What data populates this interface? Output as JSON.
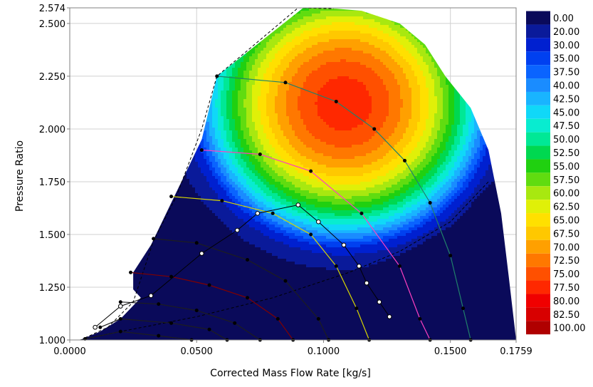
{
  "chart_data": {
    "type": "heatmap",
    "title": "",
    "xlabel": "Corrected Mass Flow Rate [kg/s]",
    "ylabel": "Pressure Ratio",
    "xlim": [
      0.0,
      0.1759
    ],
    "ylim": [
      1.0,
      2.574
    ],
    "x_ticks": [
      {
        "value": 0.0,
        "label": "0.0000"
      },
      {
        "value": 0.05,
        "label": "0.0500"
      },
      {
        "value": 0.1,
        "label": "0.1000"
      },
      {
        "value": 0.15,
        "label": "0.1500"
      },
      {
        "value": 0.1759,
        "label": "0.1759"
      }
    ],
    "y_ticks": [
      {
        "value": 1.0,
        "label": "1.000"
      },
      {
        "value": 1.25,
        "label": "1.250"
      },
      {
        "value": 1.5,
        "label": "1.500"
      },
      {
        "value": 1.75,
        "label": "1.750"
      },
      {
        "value": 2.0,
        "label": "2.000"
      },
      {
        "value": 2.25,
        "label": "2.250"
      },
      {
        "value": 2.5,
        "label": "2.500"
      },
      {
        "value": 2.574,
        "label": "2.574"
      }
    ],
    "grid": true,
    "legend_position": "right",
    "colorbar": {
      "labels": [
        "0.00",
        "20.00",
        "30.00",
        "35.00",
        "37.50",
        "40.00",
        "42.50",
        "45.00",
        "47.50",
        "50.00",
        "52.50",
        "55.00",
        "57.50",
        "60.00",
        "62.50",
        "65.00",
        "67.50",
        "70.00",
        "72.50",
        "75.00",
        "77.50",
        "80.00",
        "82.50",
        "100.00"
      ],
      "colors": [
        "#0a0a5a",
        "#0a1a9a",
        "#0020d0",
        "#0040f0",
        "#0a64ff",
        "#1a8cff",
        "#19b4ff",
        "#10d8f8",
        "#08ecd0",
        "#00e896",
        "#00d850",
        "#20d010",
        "#60dc10",
        "#a8e810",
        "#e0f008",
        "#ffe000",
        "#ffc800",
        "#ffa000",
        "#ff7800",
        "#ff5000",
        "#ff2800",
        "#f00000",
        "#d80000",
        "#b00000"
      ]
    },
    "efficiency_peak": {
      "x": 0.108,
      "y": 2.12,
      "value": 79
    },
    "efficiency_sigma": {
      "x": 0.042,
      "y": 0.48
    },
    "boundary": [
      [
        0.004,
        1.0
      ],
      [
        0.012,
        1.04
      ],
      [
        0.02,
        1.1
      ],
      [
        0.028,
        1.2
      ],
      [
        0.025,
        1.24
      ],
      [
        0.025,
        1.32
      ],
      [
        0.032,
        1.45
      ],
      [
        0.04,
        1.65
      ],
      [
        0.052,
        1.95
      ],
      [
        0.058,
        2.25
      ],
      [
        0.092,
        2.574
      ],
      [
        0.105,
        2.57
      ],
      [
        0.115,
        2.56
      ],
      [
        0.13,
        2.5
      ],
      [
        0.14,
        2.4
      ],
      [
        0.148,
        2.25
      ],
      [
        0.158,
        2.1
      ],
      [
        0.165,
        1.9
      ],
      [
        0.17,
        1.6
      ],
      [
        0.173,
        1.3
      ],
      [
        0.1759,
        1.0
      ]
    ],
    "surge_line": [
      [
        0.006,
        1.01
      ],
      [
        0.015,
        1.06
      ],
      [
        0.025,
        1.18
      ],
      [
        0.033,
        1.47
      ],
      [
        0.042,
        1.68
      ],
      [
        0.052,
        2.0
      ],
      [
        0.058,
        2.25
      ],
      [
        0.09,
        2.574
      ],
      [
        0.104,
        2.57
      ]
    ],
    "choke_line": [
      [
        0.004,
        1.0
      ],
      [
        0.02,
        1.04
      ],
      [
        0.05,
        1.11
      ],
      [
        0.08,
        1.2
      ],
      [
        0.11,
        1.32
      ],
      [
        0.13,
        1.42
      ],
      [
        0.15,
        1.56
      ],
      [
        0.165,
        1.75
      ]
    ],
    "speed_lines": [
      {
        "color": "#1e1e1e",
        "points": [
          [
            0.006,
            1.005
          ],
          [
            0.02,
            1.04
          ],
          [
            0.035,
            1.02
          ],
          [
            0.048,
            1.0
          ]
        ]
      },
      {
        "color": "#1e1e1e",
        "points": [
          [
            0.012,
            1.06
          ],
          [
            0.02,
            1.1
          ],
          [
            0.04,
            1.08
          ],
          [
            0.055,
            1.05
          ],
          [
            0.062,
            1.0
          ]
        ]
      },
      {
        "color": "#1e1e1e",
        "points": [
          [
            0.02,
            1.18
          ],
          [
            0.035,
            1.17
          ],
          [
            0.05,
            1.14
          ],
          [
            0.065,
            1.08
          ],
          [
            0.075,
            1.0
          ]
        ]
      },
      {
        "color": "#800000",
        "points": [
          [
            0.024,
            1.32
          ],
          [
            0.04,
            1.3
          ],
          [
            0.055,
            1.26
          ],
          [
            0.07,
            1.2
          ],
          [
            0.082,
            1.1
          ],
          [
            0.088,
            1.0
          ]
        ]
      },
      {
        "color": "#1e1e1e",
        "points": [
          [
            0.033,
            1.48
          ],
          [
            0.05,
            1.46
          ],
          [
            0.07,
            1.38
          ],
          [
            0.085,
            1.28
          ],
          [
            0.098,
            1.1
          ],
          [
            0.102,
            1.0
          ]
        ]
      },
      {
        "color": "#d8d800",
        "points": [
          [
            0.04,
            1.68
          ],
          [
            0.06,
            1.66
          ],
          [
            0.08,
            1.6
          ],
          [
            0.095,
            1.5
          ],
          [
            0.105,
            1.35
          ],
          [
            0.113,
            1.15
          ],
          [
            0.118,
            1.0
          ]
        ]
      },
      {
        "color": "#ff40c0",
        "points": [
          [
            0.052,
            1.9
          ],
          [
            0.075,
            1.88
          ],
          [
            0.095,
            1.8
          ],
          [
            0.115,
            1.6
          ],
          [
            0.13,
            1.35
          ],
          [
            0.138,
            1.1
          ],
          [
            0.142,
            1.0
          ]
        ]
      },
      {
        "color": "#20806a",
        "points": [
          [
            0.058,
            2.25
          ],
          [
            0.085,
            2.22
          ],
          [
            0.105,
            2.13
          ],
          [
            0.12,
            2.0
          ],
          [
            0.132,
            1.85
          ],
          [
            0.142,
            1.65
          ],
          [
            0.15,
            1.4
          ],
          [
            0.155,
            1.15
          ],
          [
            0.158,
            1.0
          ]
        ]
      }
    ],
    "operating_line": [
      [
        0.01,
        1.06
      ],
      [
        0.02,
        1.16
      ],
      [
        0.032,
        1.21
      ],
      [
        0.052,
        1.41
      ],
      [
        0.066,
        1.52
      ],
      [
        0.074,
        1.6
      ],
      [
        0.09,
        1.64
      ],
      [
        0.098,
        1.56
      ],
      [
        0.108,
        1.45
      ],
      [
        0.114,
        1.35
      ],
      [
        0.117,
        1.27
      ],
      [
        0.122,
        1.18
      ],
      [
        0.126,
        1.11
      ]
    ]
  }
}
